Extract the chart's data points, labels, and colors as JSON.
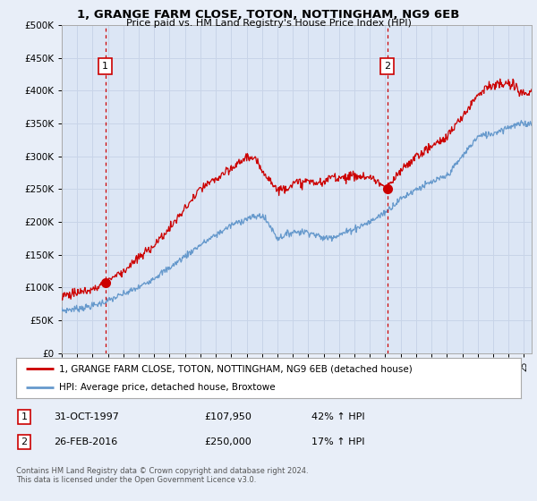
{
  "title": "1, GRANGE FARM CLOSE, TOTON, NOTTINGHAM, NG9 6EB",
  "subtitle": "Price paid vs. HM Land Registry's House Price Index (HPI)",
  "background_color": "#e8eef8",
  "plot_bg_color": "#dce6f5",
  "sale1": {
    "date": 1997.83,
    "price": 107950,
    "label": "1"
  },
  "sale2": {
    "date": 2016.12,
    "price": 250000,
    "label": "2"
  },
  "legend_line1": "1, GRANGE FARM CLOSE, TOTON, NOTTINGHAM, NG9 6EB (detached house)",
  "legend_line2": "HPI: Average price, detached house, Broxtowe",
  "table_row1": [
    "1",
    "31-OCT-1997",
    "£107,950",
    "42% ↑ HPI"
  ],
  "table_row2": [
    "2",
    "26-FEB-2016",
    "£250,000",
    "17% ↑ HPI"
  ],
  "footer": "Contains HM Land Registry data © Crown copyright and database right 2024.\nThis data is licensed under the Open Government Licence v3.0.",
  "ylabel_ticks": [
    "£0",
    "£50K",
    "£100K",
    "£150K",
    "£200K",
    "£250K",
    "£300K",
    "£350K",
    "£400K",
    "£450K",
    "£500K"
  ],
  "ytick_vals": [
    0,
    50000,
    100000,
    150000,
    200000,
    250000,
    300000,
    350000,
    400000,
    450000,
    500000
  ],
  "xmin": 1995.0,
  "xmax": 2025.5,
  "ymin": 0,
  "ymax": 500000,
  "red_color": "#cc0000",
  "blue_color": "#6699cc",
  "grid_color": "#c8d4e8"
}
